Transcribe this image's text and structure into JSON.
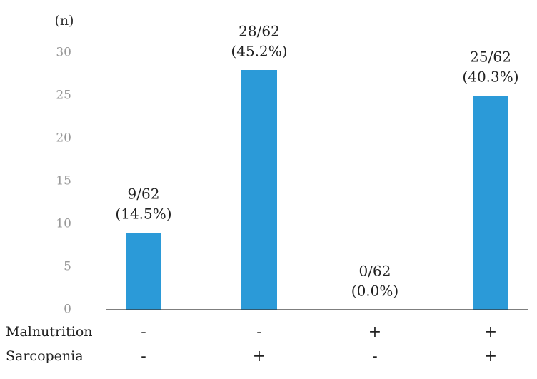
{
  "chart_data": {
    "type": "bar",
    "y_label": "(n)",
    "values": [
      9,
      28,
      0,
      25
    ],
    "value_labels": [
      [
        "9/62",
        "(14.5%)"
      ],
      [
        "28/62",
        "(45.2%)"
      ],
      [
        "0/62",
        "(0.0%)"
      ],
      [
        "25/62",
        "(40.3%)"
      ]
    ],
    "color": "#2b9ad8",
    "ylim": [
      0,
      30
    ],
    "yticks": [
      0,
      5,
      10,
      15,
      20,
      25,
      30
    ],
    "grid": false,
    "category_rows": [
      {
        "label": "Malnutrition",
        "values": [
          "-",
          "-",
          "+",
          "+"
        ]
      },
      {
        "label": "Sarcopenia",
        "values": [
          "-",
          "+",
          "-",
          "+"
        ]
      }
    ]
  }
}
